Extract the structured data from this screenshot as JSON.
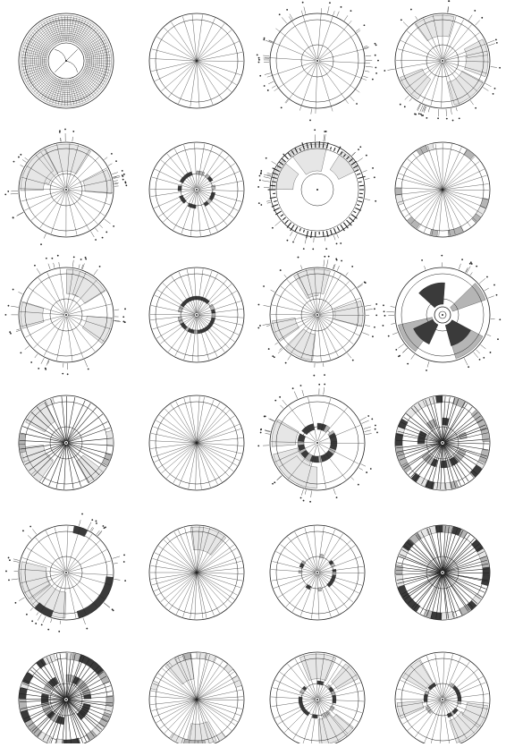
{
  "page": {
    "background": "#ffffff",
    "ink_color": "#222222",
    "shade_light": "#e6e6e6",
    "shade_mid": "#b5b5b5",
    "shade_dark": "#3a3a3a"
  },
  "diagram": {
    "kind": "grid of circular radial diagrams",
    "rows": 6,
    "columns": 4,
    "panels": [
      {
        "id": 1,
        "style": "dense-ring-grid",
        "rays": 0,
        "sectors": 0,
        "band": "dense",
        "labels": false
      },
      {
        "id": 2,
        "style": "plain-rays",
        "rays": 26,
        "sectors": 0,
        "band": "none",
        "labels": false
      },
      {
        "id": 3,
        "style": "extended-rays",
        "rays": 20,
        "sectors": 0,
        "band": "none",
        "labels": true
      },
      {
        "id": 4,
        "style": "labeled-sectors",
        "rays": 28,
        "sectors": 5,
        "band": "none",
        "labels": true
      },
      {
        "id": 5,
        "style": "labeled-sectors",
        "rays": 24,
        "sectors": 4,
        "band": "none",
        "labels": true
      },
      {
        "id": 6,
        "style": "inner-band",
        "rays": 30,
        "sectors": 0,
        "band": "inner-partial",
        "labels": false
      },
      {
        "id": 7,
        "style": "text-ring",
        "rays": 0,
        "sectors": 3,
        "band": "text",
        "labels": true
      },
      {
        "id": 8,
        "style": "outer-band",
        "rays": 36,
        "sectors": 0,
        "band": "outer-partial",
        "labels": false
      },
      {
        "id": 9,
        "style": "labeled-sectors",
        "rays": 22,
        "sectors": 4,
        "band": "none",
        "labels": true
      },
      {
        "id": 10,
        "style": "inner-band",
        "rays": 34,
        "sectors": 0,
        "band": "inner-full",
        "labels": false
      },
      {
        "id": 11,
        "style": "labeled-sectors",
        "rays": 30,
        "sectors": 5,
        "band": "none",
        "labels": true
      },
      {
        "id": 12,
        "style": "hub-blades",
        "rays": 0,
        "sectors": 3,
        "band": "none",
        "labels": true
      },
      {
        "id": 13,
        "style": "dense-rays-band",
        "rays": 36,
        "sectors": 4,
        "band": "outer-partial",
        "labels": false
      },
      {
        "id": 14,
        "style": "plain-rays",
        "rays": 40,
        "sectors": 0,
        "band": "none",
        "labels": false
      },
      {
        "id": 15,
        "style": "thick-inner-ring",
        "rays": 14,
        "sectors": 3,
        "band": "inner-thick",
        "labels": true
      },
      {
        "id": 16,
        "style": "dense-rays-band",
        "rays": 56,
        "sectors": 0,
        "band": "both-dark",
        "labels": false
      },
      {
        "id": 17,
        "style": "arc-blocks",
        "rays": 24,
        "sectors": 3,
        "band": "arc-blocks",
        "labels": true
      },
      {
        "id": 18,
        "style": "plain-rays",
        "rays": 44,
        "sectors": 1,
        "band": "none",
        "labels": false
      },
      {
        "id": 19,
        "style": "inner-band",
        "rays": 30,
        "sectors": 0,
        "band": "inner-partial",
        "labels": false
      },
      {
        "id": 20,
        "style": "dense-rays-band",
        "rays": 64,
        "sectors": 0,
        "band": "outer-dark",
        "labels": false
      },
      {
        "id": 21,
        "style": "dense-rays-band",
        "rays": 58,
        "sectors": 0,
        "band": "both-dark",
        "labels": false
      },
      {
        "id": 22,
        "style": "plain-rays",
        "rays": 44,
        "sectors": 2,
        "band": "outer-partial",
        "labels": false
      },
      {
        "id": 23,
        "style": "inner-band",
        "rays": 30,
        "sectors": 4,
        "band": "inner-partial",
        "labels": false
      },
      {
        "id": 24,
        "style": "inner-band",
        "rays": 32,
        "sectors": 4,
        "band": "inner-partial",
        "labels": false
      }
    ]
  }
}
